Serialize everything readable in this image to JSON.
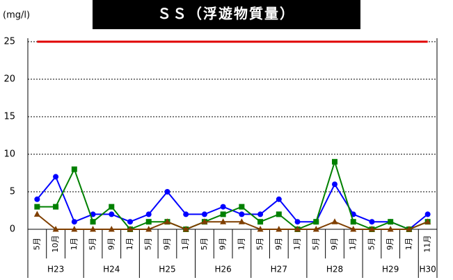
{
  "chart_data": {
    "type": "line",
    "title": "ＳＳ（浮遊物質量）",
    "unit_label": "(mg/l)",
    "categories": [
      "5月",
      "10月",
      "1月",
      "5月",
      "9月",
      "1月",
      "5月",
      "9月",
      "1月",
      "5月",
      "9月",
      "1月",
      "5月",
      "9月",
      "1月",
      "5月",
      "9月",
      "1月",
      "5月",
      "9月",
      "1月",
      "11月"
    ],
    "category_groups": [
      "H23",
      "H23",
      "H23",
      "H24",
      "H24",
      "H24",
      "H25",
      "H25",
      "H25",
      "H26",
      "H26",
      "H26",
      "H27",
      "H27",
      "H27",
      "H28",
      "H28",
      "H28",
      "H29",
      "H29",
      "H29",
      "H30"
    ],
    "series": [
      {
        "color": "#e00000",
        "marker": "none",
        "values": [
          25,
          25,
          25,
          25,
          25,
          25,
          25,
          25,
          25,
          25,
          25,
          25,
          25,
          25,
          25,
          25,
          25,
          25,
          25,
          25,
          25,
          25
        ]
      },
      {
        "color": "#0000ff",
        "marker": "circle",
        "values": [
          4,
          7,
          1,
          2,
          2,
          1,
          2,
          5,
          2,
          2,
          3,
          2,
          2,
          4,
          1,
          1,
          6,
          2,
          1,
          1,
          0,
          2
        ]
      },
      {
        "color": "#008000",
        "marker": "square",
        "values": [
          3,
          3,
          8,
          1,
          3,
          0,
          1,
          1,
          0,
          1,
          2,
          3,
          1,
          2,
          0,
          1,
          9,
          1,
          0,
          1,
          0,
          1
        ]
      },
      {
        "color": "#7f3f00",
        "marker": "triangle",
        "values": [
          2,
          0,
          0,
          0,
          0,
          0,
          0,
          1,
          0,
          1,
          1,
          1,
          0,
          0,
          0,
          0,
          1,
          0,
          0,
          0,
          0,
          1
        ]
      }
    ],
    "ylim": [
      0,
      25
    ],
    "yticks": [
      0,
      5,
      10,
      15,
      20,
      25
    ],
    "grid": true
  }
}
